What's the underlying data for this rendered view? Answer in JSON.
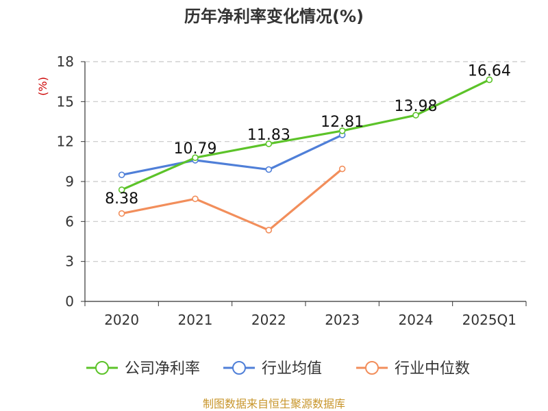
{
  "chart_data": {
    "type": "line",
    "title": "历年净利率变化情况(%)",
    "ylabel": "(%)",
    "xlabel": "",
    "categories": [
      "2020",
      "2021",
      "2022",
      "2023",
      "2024",
      "2025Q1"
    ],
    "ylim": [
      0,
      18
    ],
    "yticks": [
      "0",
      "3",
      "6",
      "9",
      "12",
      "15",
      "18"
    ],
    "grid": true,
    "legend_position": "bottom",
    "series": [
      {
        "name": "公司净利率",
        "color": "#5cc329",
        "values": [
          8.38,
          10.79,
          11.83,
          12.81,
          13.98,
          16.64
        ],
        "labels": [
          "8.38",
          "10.79",
          "11.83",
          "12.81",
          "13.98",
          "16.64"
        ]
      },
      {
        "name": "行业均值",
        "color": "#4f7fd8",
        "values": [
          9.5,
          10.6,
          9.9,
          12.5,
          null,
          null
        ]
      },
      {
        "name": "行业中位数",
        "color": "#f28e5b",
        "values": [
          6.6,
          7.7,
          5.35,
          9.95,
          null,
          null
        ]
      }
    ],
    "source": "制图数据来自恒生聚源数据库"
  }
}
